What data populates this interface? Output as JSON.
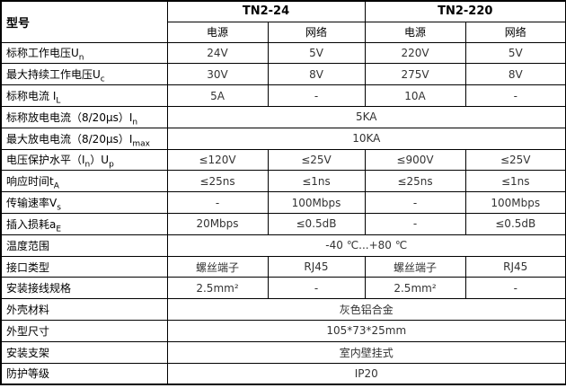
{
  "colors": {
    "background": "#ffffff",
    "border": "#000000",
    "label_text": "#000000",
    "value_text": "#333333"
  },
  "header": {
    "model_label": "型号",
    "groups": [
      {
        "name": "TN2-24",
        "subcols": [
          "电源",
          "网络"
        ]
      },
      {
        "name": "TN2-220",
        "subcols": [
          "电源",
          "网络"
        ]
      }
    ]
  },
  "rows": [
    {
      "label": [
        {
          "t": "标称工作电压U"
        },
        {
          "t": "n",
          "sub": true
        }
      ],
      "cells": [
        "24V",
        "5V",
        "220V",
        "5V"
      ]
    },
    {
      "label": [
        {
          "t": "最大持续工作电压U"
        },
        {
          "t": "c",
          "sub": true
        }
      ],
      "cells": [
        "30V",
        "8V",
        "275V",
        "8V"
      ]
    },
    {
      "label": [
        {
          "t": "标称电流 I"
        },
        {
          "t": "L",
          "sub": true
        }
      ],
      "cells": [
        "5A",
        "-",
        "10A",
        "-"
      ]
    },
    {
      "label": [
        {
          "t": "标称放电电流（8/20μs）I"
        },
        {
          "t": "n",
          "sub": true
        }
      ],
      "span": "5KA"
    },
    {
      "label": [
        {
          "t": "最大放电电流（8/20μs）I"
        },
        {
          "t": "max",
          "sub": true
        }
      ],
      "span": "10KA"
    },
    {
      "label": [
        {
          "t": "电压保护水平（I"
        },
        {
          "t": "n",
          "sub": true
        },
        {
          "t": "）U"
        },
        {
          "t": "p",
          "sub": true
        }
      ],
      "cells": [
        "≤120V",
        "≤25V",
        "≤900V",
        "≤25V"
      ]
    },
    {
      "label": [
        {
          "t": "响应时间t"
        },
        {
          "t": "A",
          "sub": true
        }
      ],
      "cells": [
        "≤25ns",
        "≤1ns",
        "≤25ns",
        "≤1ns"
      ]
    },
    {
      "label": [
        {
          "t": "传输速率V"
        },
        {
          "t": "s",
          "sub": true
        }
      ],
      "cells": [
        "-",
        "100Mbps",
        "-",
        "100Mbps"
      ]
    },
    {
      "label": [
        {
          "t": "插入损耗a"
        },
        {
          "t": "E",
          "sub": true
        }
      ],
      "cells": [
        "20Mbps",
        "≤0.5dB",
        "-",
        "≤0.5dB"
      ]
    },
    {
      "label": [
        {
          "t": "温度范围"
        }
      ],
      "span": "-40 ℃...+80 ℃"
    },
    {
      "label": [
        {
          "t": "接口类型"
        }
      ],
      "cells": [
        "螺丝端子",
        "RJ45",
        "螺丝端子",
        "RJ45"
      ]
    },
    {
      "label": [
        {
          "t": "安装接线规格"
        }
      ],
      "cells": [
        "2.5mm²",
        "-",
        "2.5mm²",
        "-"
      ]
    },
    {
      "label": [
        {
          "t": "外壳材料"
        }
      ],
      "span": "灰色铝合金"
    },
    {
      "label": [
        {
          "t": "外型尺寸"
        }
      ],
      "span": "105*73*25mm"
    },
    {
      "label": [
        {
          "t": "安装支架"
        }
      ],
      "span": "室内壁挂式"
    },
    {
      "label": [
        {
          "t": "防护等级"
        }
      ],
      "span": "IP20"
    }
  ]
}
